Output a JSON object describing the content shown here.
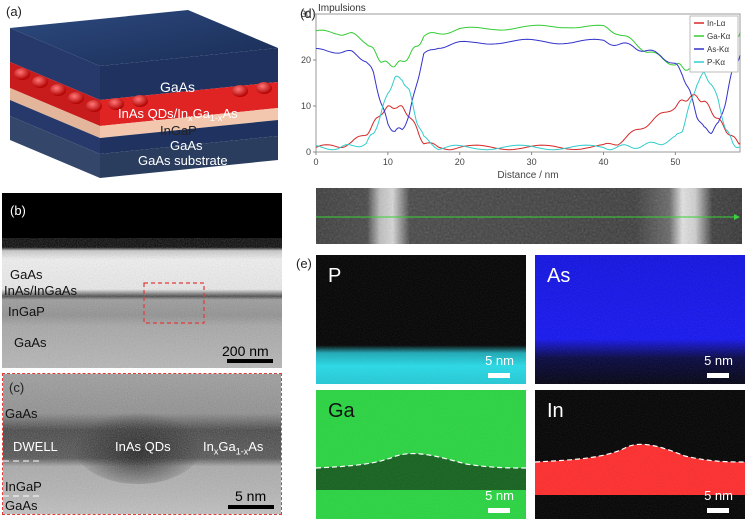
{
  "panel_labels": {
    "a": "(a)",
    "b": "(b)",
    "c": "(c)",
    "d": "(d)",
    "e": "(e)"
  },
  "schematic": {
    "layers": [
      "GaAs",
      "InAs QDs/In",
      "x",
      "Ga",
      "1-x",
      "As",
      "InGaP",
      "GaAs",
      "GaAs substrate"
    ]
  },
  "tem_b": {
    "labels": [
      "GaAs",
      "InAs/InGaAs",
      "InGaP",
      "GaAs"
    ],
    "scale": "200 nm"
  },
  "tem_c": {
    "labels": {
      "gaas_top": "GaAs",
      "dwell": "DWELL",
      "qds": "InAs QDs",
      "ingaas_pre": "In",
      "ingaas_x": "x",
      "ingaas_mid": "Ga",
      "ingaas_sub": "1-x",
      "ingaas_post": "As",
      "ingap": "InGaP",
      "gaas_bottom": "GaAs"
    },
    "scale": "5 nm"
  },
  "maps": [
    {
      "label": "P",
      "scale": "5 nm"
    },
    {
      "label": "As",
      "scale": "5 nm"
    },
    {
      "label": "Ga",
      "scale": "5 nm"
    },
    {
      "label": "In",
      "scale": "5 nm"
    }
  ],
  "chart_data": {
    "type": "line",
    "title": "Impulsions",
    "xlabel": "Distance / nm",
    "ylabel": "",
    "xlim": [
      0,
      59
    ],
    "ylim": [
      0,
      30
    ],
    "xticks": [
      0,
      10,
      20,
      30,
      40,
      50
    ],
    "yticks": [
      0,
      10,
      20,
      30
    ],
    "series": [
      {
        "name": "In-Lα",
        "color": "#d62828",
        "x": [
          0,
          3,
          5,
          7,
          8,
          9,
          10,
          11,
          12,
          13,
          14,
          15,
          17,
          20,
          25,
          30,
          35,
          40,
          42,
          44,
          46,
          48,
          50,
          51,
          52,
          53,
          54,
          55,
          56,
          57,
          58,
          59
        ],
        "y": [
          1,
          1.2,
          2,
          4,
          6,
          8.5,
          9.5,
          10,
          9.5,
          8,
          5,
          2,
          1,
          1,
          1,
          1,
          1,
          1.2,
          2,
          4,
          6,
          8,
          10,
          11,
          12,
          12,
          11,
          9,
          7,
          5,
          3,
          2
        ]
      },
      {
        "name": "Ga-Kα",
        "color": "#33cc33",
        "x": [
          0,
          3,
          5,
          7,
          8,
          9,
          10,
          11,
          12,
          13,
          14,
          15,
          17,
          20,
          25,
          30,
          35,
          40,
          42,
          44,
          46,
          48,
          50,
          51,
          52,
          53,
          54,
          55,
          56,
          57,
          58,
          59
        ],
        "y": [
          26,
          26,
          25.5,
          24,
          22,
          20,
          19,
          19,
          19.5,
          21,
          23,
          25,
          26,
          26.5,
          27,
          27,
          27.5,
          27,
          26,
          24,
          22,
          20.5,
          19,
          18.5,
          18,
          18,
          18,
          18.5,
          19.5,
          22,
          24,
          26
        ]
      },
      {
        "name": "As-Kα",
        "color": "#3333cc",
        "x": [
          0,
          3,
          5,
          7,
          8,
          9,
          10,
          11,
          12,
          13,
          14,
          15,
          17,
          20,
          25,
          30,
          35,
          40,
          42,
          44,
          46,
          48,
          50,
          51,
          52,
          53,
          54,
          55,
          56,
          57,
          58,
          59
        ],
        "y": [
          22,
          22,
          21.5,
          20,
          17,
          11,
          6,
          4.5,
          5,
          8,
          15,
          21,
          23,
          23.5,
          24,
          24,
          24,
          24,
          23.5,
          23,
          22,
          21,
          19,
          17,
          13,
          8,
          5,
          4.5,
          6,
          11,
          18,
          21
        ]
      },
      {
        "name": "P-Kα",
        "color": "#33cccc",
        "x": [
          0,
          3,
          5,
          7,
          8,
          9,
          10,
          11,
          12,
          13,
          14,
          15,
          17,
          20,
          25,
          30,
          35,
          40,
          42,
          44,
          46,
          48,
          50,
          51,
          52,
          53,
          54,
          55,
          56,
          57,
          58,
          59
        ],
        "y": [
          1,
          1,
          1.2,
          2,
          4,
          8,
          13,
          16,
          16,
          13,
          7,
          3,
          1,
          1,
          1,
          1,
          1,
          1,
          1,
          1.2,
          1.5,
          2,
          3,
          5,
          10,
          15,
          17,
          15,
          11,
          5,
          2,
          1
        ]
      }
    ]
  },
  "colors": {
    "gaas": "#1c2c4a",
    "red": "#d62828",
    "ingap": "#f4c9b1",
    "map_p": "#23d7e6",
    "map_as": "#1414f0",
    "map_ga": "#27d43f",
    "map_in": "#ff2a2a"
  }
}
